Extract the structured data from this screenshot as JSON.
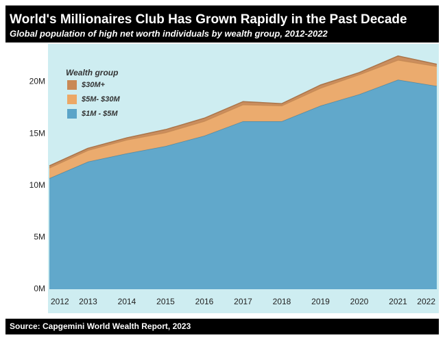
{
  "chart_data": {
    "type": "area",
    "stacked": true,
    "title": "World's Millionaires Club Has Grown Rapidly in the Past Decade",
    "subtitle": "Global population of high net worth individuals by wealth group, 2012-2022",
    "source": "Source: Capgemini World Wealth Report, 2023",
    "legend_title": "Wealth group",
    "x": [
      2012,
      2013,
      2014,
      2015,
      2016,
      2017,
      2018,
      2019,
      2020,
      2021,
      2022
    ],
    "xlim": [
      2012,
      2022
    ],
    "xticks": [
      2012,
      2013,
      2014,
      2015,
      2016,
      2017,
      2018,
      2019,
      2020,
      2021,
      2022
    ],
    "ylim": [
      0,
      23.6
    ],
    "yticks": [
      {
        "value": 0,
        "label": "0M"
      },
      {
        "value": 5,
        "label": "5M"
      },
      {
        "value": 10,
        "label": "10M"
      },
      {
        "value": 15,
        "label": "15M"
      },
      {
        "value": 20,
        "label": "20M"
      }
    ],
    "series": [
      {
        "name": "$1M - $5M",
        "color": "#5ba4c8",
        "values": [
          10.7,
          12.3,
          13.1,
          13.8,
          14.8,
          16.2,
          16.2,
          17.7,
          18.8,
          20.2,
          19.6
        ]
      },
      {
        "name": "$5M- $30M",
        "color": "#eca866",
        "values": [
          1.0,
          1.1,
          1.3,
          1.3,
          1.4,
          1.6,
          1.5,
          1.7,
          1.9,
          1.9,
          1.9
        ]
      },
      {
        "name": "$30M+",
        "color": "#c98955",
        "values": [
          0.2,
          0.2,
          0.2,
          0.3,
          0.3,
          0.3,
          0.2,
          0.3,
          0.2,
          0.4,
          0.2
        ]
      }
    ]
  }
}
